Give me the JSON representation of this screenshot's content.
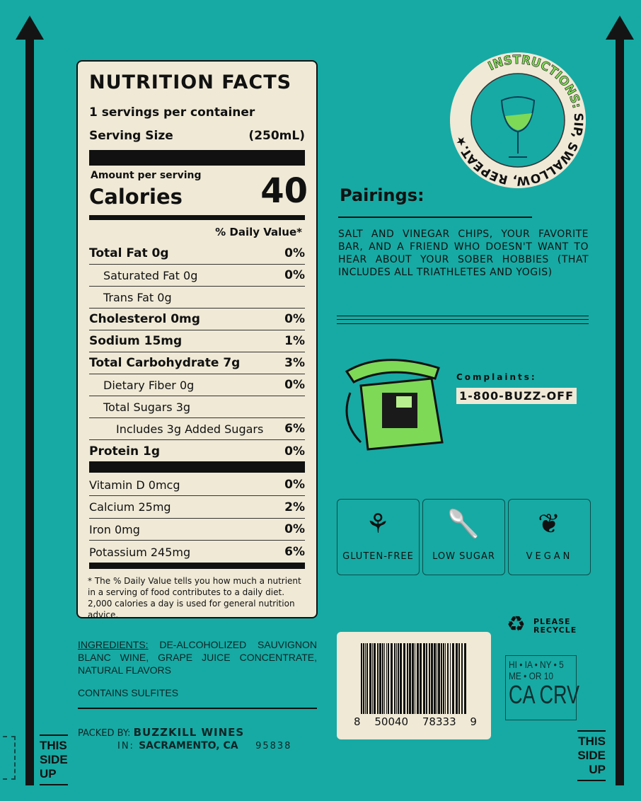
{
  "nutrition": {
    "title": "NUTRITION FACTS",
    "servings": "1 servings per container",
    "serving_size_label": "Serving Size",
    "serving_size": "(250mL)",
    "amount_label": "Amount per serving",
    "calories_label": "Calories",
    "calories": "40",
    "dv_header": "% Daily Value*",
    "rows": [
      {
        "label": "Total Fat 0g",
        "dv": "0%",
        "bold": true,
        "indent": 0
      },
      {
        "label": "Saturated Fat 0g",
        "dv": "0%",
        "bold": false,
        "indent": 1
      },
      {
        "label": "Trans Fat 0g",
        "dv": "",
        "bold": false,
        "indent": 1
      },
      {
        "label": "Cholesterol 0mg",
        "dv": "0%",
        "bold": true,
        "indent": 0
      },
      {
        "label": "Sodium 15mg",
        "dv": "1%",
        "bold": true,
        "indent": 0
      },
      {
        "label": "Total Carbohydrate 7g",
        "dv": "3%",
        "bold": true,
        "indent": 0
      },
      {
        "label": "Dietary Fiber 0g",
        "dv": "0%",
        "bold": false,
        "indent": 1
      },
      {
        "label": "Total Sugars 3g",
        "dv": "",
        "bold": false,
        "indent": 1
      },
      {
        "label": "Includes 3g Added Sugars",
        "dv": "6%",
        "bold": false,
        "indent": 2
      },
      {
        "label": "Protein 1g",
        "dv": "0%",
        "bold": true,
        "indent": 0
      }
    ],
    "vitamins": [
      {
        "label": "Vitamin D 0mcg",
        "dv": "0%"
      },
      {
        "label": "Calcium 25mg",
        "dv": "2%"
      },
      {
        "label": "Iron 0mg",
        "dv": "0%"
      },
      {
        "label": "Potassium 245mg",
        "dv": "6%"
      }
    ],
    "footnote": "* The % Daily Value tells you how much a nutrient in a serving of food contributes to a daily diet. 2,000 calories a day is used for general nutrition advice."
  },
  "instructions": {
    "lead": "INSTRUCTIONS:",
    "rest": "SIP, SWALLOW, REPEAT.★"
  },
  "pairings": {
    "title": "Pairings:",
    "text": "SALT AND VINEGAR CHIPS, YOUR FAVORITE BAR, AND A FRIEND WHO DOESN'T WANT TO HEAR ABOUT YOUR SOBER HOBBIES (THAT INCLUDES ALL TRIATHLETES AND YOGIS)"
  },
  "complaints": {
    "label": "Complaints:",
    "phone": "1-800-BUZZ-OFF"
  },
  "badges": [
    {
      "label": "GLUTEN-FREE",
      "icon": "wheat-icon"
    },
    {
      "label": "LOW SUGAR",
      "icon": "sugar-spoon-icon"
    },
    {
      "label": "VEGAN",
      "icon": "leaf-icon"
    }
  ],
  "recycle": "PLEASE RECYCLE",
  "crv": {
    "line1": "HI • IA • NY • 5",
    "line2": "ME • OR 10",
    "line3": "CA CRV"
  },
  "barcode": {
    "digits": [
      "8",
      "50040",
      "78333",
      "9"
    ]
  },
  "ingredients": {
    "label": "INGREDIENTS:",
    "text": " DE-ALCOHOLIZED SAUVIGNON BLANC WINE, GRAPE JUICE CONCENTRATE, NATURAL FLAVORS",
    "contains": "CONTAINS SULFITES"
  },
  "packed": {
    "by_label": "PACKED BY:",
    "by": "BUZZKILL WINES",
    "in_label": "IN:",
    "city": "SACRAMENTO, CA",
    "zip": "95838"
  },
  "this_side_up": "THIS SIDE UP",
  "colors": {
    "background": "#17aaa4",
    "panel": "#efe9d6",
    "accent": "#7ed957",
    "ink": "#111111"
  }
}
